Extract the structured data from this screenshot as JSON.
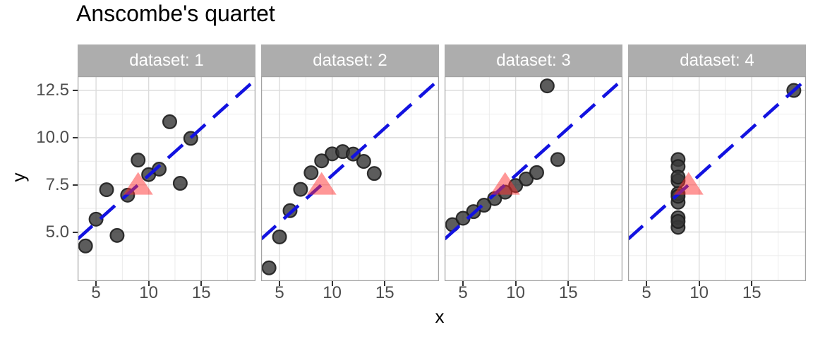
{
  "style": {
    "background": "#ffffff",
    "strip_background": "#adadad",
    "strip_text_color": "#ffffff",
    "panel_border": "#a3a3a3",
    "grid_major": "#dcdcdc",
    "grid_minor": "#ececec",
    "tick_text_color": "#4d4d4d",
    "tick_mark_color": "#333333",
    "point_fill": "#383838",
    "point_stroke": "#1e1e1e",
    "trend_blue": "#1212e0",
    "mean_marker_red": "#ff3030"
  },
  "x_axis": {
    "tick_values": [
      5,
      10,
      15
    ],
    "tick_labels": [
      "5",
      "10",
      "15"
    ],
    "minor_breaks": [
      7.5,
      12.5,
      17.5
    ]
  },
  "y_axis": {
    "tick_values": [
      12.5,
      10.0,
      7.5,
      5.0
    ],
    "tick_labels": [
      "12.5",
      "10.0",
      "7.5",
      "5.0"
    ],
    "minor_breaks": [
      3.75,
      6.25,
      8.75,
      11.25
    ]
  },
  "chart_data": {
    "type": "scatter",
    "title": "Anscombe's quartet",
    "xlabel": "x",
    "ylabel": "y",
    "grid": "on",
    "xlim": [
      3.25,
      20.15
    ],
    "ylim": [
      2.4,
      13.25
    ],
    "facet_variable": "dataset",
    "facets": [
      {
        "label": "dataset: 1",
        "points": [
          [
            10,
            8.04
          ],
          [
            8,
            6.95
          ],
          [
            13,
            7.58
          ],
          [
            9,
            8.81
          ],
          [
            11,
            8.33
          ],
          [
            14,
            9.96
          ],
          [
            6,
            7.24
          ],
          [
            4,
            4.26
          ],
          [
            12,
            10.84
          ],
          [
            7,
            4.82
          ],
          [
            5,
            5.68
          ]
        ]
      },
      {
        "label": "dataset: 2",
        "points": [
          [
            10,
            9.14
          ],
          [
            8,
            8.14
          ],
          [
            13,
            8.74
          ],
          [
            9,
            8.77
          ],
          [
            11,
            9.26
          ],
          [
            14,
            8.1
          ],
          [
            6,
            6.13
          ],
          [
            4,
            3.1
          ],
          [
            12,
            9.13
          ],
          [
            7,
            7.26
          ],
          [
            5,
            4.74
          ]
        ]
      },
      {
        "label": "dataset: 3",
        "points": [
          [
            10,
            7.46
          ],
          [
            8,
            6.77
          ],
          [
            13,
            12.74
          ],
          [
            9,
            7.11
          ],
          [
            11,
            7.81
          ],
          [
            14,
            8.84
          ],
          [
            6,
            6.08
          ],
          [
            4,
            5.39
          ],
          [
            12,
            8.15
          ],
          [
            7,
            6.42
          ],
          [
            5,
            5.73
          ]
        ]
      },
      {
        "label": "dataset: 4",
        "points": [
          [
            8,
            6.58
          ],
          [
            8,
            5.76
          ],
          [
            8,
            7.71
          ],
          [
            8,
            8.84
          ],
          [
            8,
            8.47
          ],
          [
            8,
            7.04
          ],
          [
            8,
            5.25
          ],
          [
            19,
            12.5
          ],
          [
            8,
            5.56
          ],
          [
            8,
            7.91
          ],
          [
            8,
            6.89
          ]
        ]
      }
    ],
    "trend_line": {
      "description": "y = 3 + 0.5x",
      "intercept": 3,
      "slope": 0.5,
      "linetype": "dashed",
      "color": "#1212e0"
    },
    "mean_marker": {
      "x": 9,
      "y": 7.5,
      "shape": "triangle",
      "color": "#ff3030",
      "opacity": 0.5
    }
  }
}
